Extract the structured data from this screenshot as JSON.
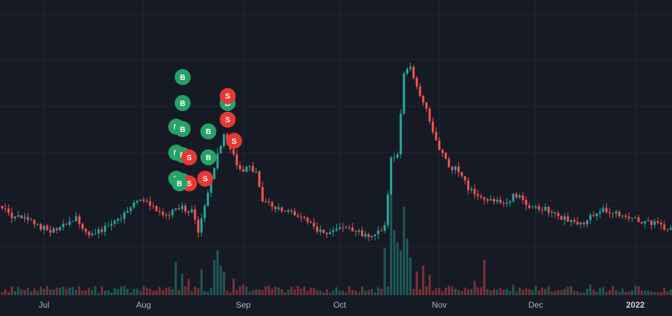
{
  "chart_data": {
    "type": "candlestick",
    "title": "",
    "grid": true,
    "colors": {
      "background": "#161a25",
      "grid": "#232735",
      "up": "#26a69a",
      "down": "#ef5350",
      "up_volume": "#1d5a55",
      "down_volume": "#7a3034",
      "buy_marker": "#26a269",
      "sell_marker": "#e53935"
    },
    "x_ticks": [
      {
        "label": "Jul",
        "day": 14,
        "bold": false
      },
      {
        "label": "Aug",
        "day": 45,
        "bold": false
      },
      {
        "label": "Sep",
        "day": 76,
        "bold": false
      },
      {
        "label": "Oct",
        "day": 106,
        "bold": false
      },
      {
        "label": "Nov",
        "day": 137,
        "bold": false
      },
      {
        "label": "Dec",
        "day": 167,
        "bold": false
      },
      {
        "label": "2022",
        "day": 198,
        "bold": true
      }
    ],
    "ylim": [
      0,
      100
    ],
    "day_range": [
      0,
      212
    ],
    "price_anchors": [
      [
        0,
        31
      ],
      [
        4,
        26
      ],
      [
        8,
        25
      ],
      [
        12,
        22
      ],
      [
        16,
        20
      ],
      [
        20,
        22
      ],
      [
        24,
        25
      ],
      [
        28,
        18
      ],
      [
        32,
        20
      ],
      [
        36,
        24
      ],
      [
        40,
        28
      ],
      [
        44,
        34
      ],
      [
        48,
        30
      ],
      [
        52,
        26
      ],
      [
        56,
        30
      ],
      [
        60,
        28
      ],
      [
        62,
        20
      ],
      [
        64,
        30
      ],
      [
        66,
        42
      ],
      [
        68,
        52
      ],
      [
        70,
        60
      ],
      [
        72,
        55
      ],
      [
        74,
        48
      ],
      [
        76,
        46
      ],
      [
        78,
        47
      ],
      [
        80,
        44
      ],
      [
        82,
        32
      ],
      [
        86,
        30
      ],
      [
        90,
        28
      ],
      [
        94,
        26
      ],
      [
        98,
        21
      ],
      [
        102,
        18
      ],
      [
        106,
        22
      ],
      [
        110,
        20
      ],
      [
        114,
        18
      ],
      [
        118,
        19
      ],
      [
        120,
        22
      ],
      [
        122,
        50
      ],
      [
        124,
        52
      ],
      [
        126,
        86
      ],
      [
        128,
        90
      ],
      [
        130,
        80
      ],
      [
        132,
        75
      ],
      [
        134,
        66
      ],
      [
        136,
        58
      ],
      [
        138,
        52
      ],
      [
        140,
        47
      ],
      [
        142,
        46
      ],
      [
        144,
        43
      ],
      [
        146,
        38
      ],
      [
        148,
        36
      ],
      [
        150,
        34
      ],
      [
        154,
        33
      ],
      [
        158,
        31
      ],
      [
        160,
        36
      ],
      [
        162,
        34
      ],
      [
        164,
        30
      ],
      [
        166,
        30
      ],
      [
        170,
        29
      ],
      [
        174,
        26
      ],
      [
        178,
        24
      ],
      [
        182,
        22
      ],
      [
        184,
        26
      ],
      [
        186,
        28
      ],
      [
        188,
        29
      ],
      [
        192,
        27
      ],
      [
        196,
        25
      ],
      [
        200,
        24
      ],
      [
        204,
        23
      ],
      [
        208,
        21
      ],
      [
        212,
        19
      ]
    ],
    "volume_spikes": [
      [
        55,
        28
      ],
      [
        57,
        18
      ],
      [
        59,
        14
      ],
      [
        63,
        22
      ],
      [
        67,
        30
      ],
      [
        68,
        38
      ],
      [
        69,
        25
      ],
      [
        70,
        20
      ],
      [
        73,
        14
      ],
      [
        76,
        9
      ],
      [
        120,
        40
      ],
      [
        122,
        90
      ],
      [
        123,
        55
      ],
      [
        124,
        45
      ],
      [
        125,
        38
      ],
      [
        126,
        75
      ],
      [
        127,
        48
      ],
      [
        128,
        32
      ],
      [
        130,
        20
      ],
      [
        132,
        25
      ],
      [
        134,
        17
      ],
      [
        148,
        12
      ],
      [
        151,
        30
      ],
      [
        160,
        9
      ],
      [
        184,
        9
      ]
    ],
    "markers": [
      {
        "type": "B",
        "day": 55,
        "price": 85
      },
      {
        "type": "B",
        "day": 55,
        "price": 74
      },
      {
        "type": "B",
        "day": 53,
        "price": 64
      },
      {
        "type": "B",
        "day": 55,
        "price": 63
      },
      {
        "type": "B",
        "day": 53,
        "price": 53
      },
      {
        "type": "B",
        "day": 55,
        "price": 52
      },
      {
        "type": "S",
        "day": 57,
        "price": 51
      },
      {
        "type": "B",
        "day": 53,
        "price": 42
      },
      {
        "type": "B",
        "day": 55,
        "price": 41
      },
      {
        "type": "S",
        "day": 57,
        "price": 40
      },
      {
        "type": "B",
        "day": 54,
        "price": 40
      },
      {
        "type": "S",
        "day": 62,
        "price": 42
      },
      {
        "type": "B",
        "day": 63,
        "price": 62
      },
      {
        "type": "B",
        "day": 63,
        "price": 51
      },
      {
        "type": "B",
        "day": 69,
        "price": 74
      },
      {
        "type": "S",
        "day": 69,
        "price": 77
      },
      {
        "type": "S",
        "day": 69,
        "price": 67
      },
      {
        "type": "S",
        "day": 71,
        "price": 58
      }
    ]
  }
}
